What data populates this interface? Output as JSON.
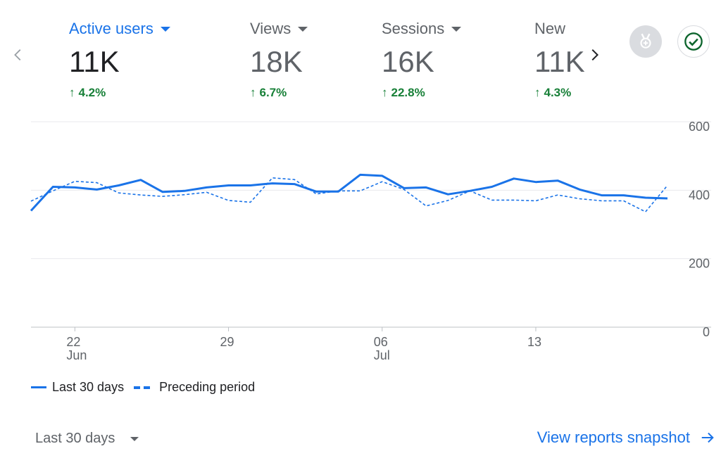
{
  "metrics": [
    {
      "label": "Active users",
      "value": "11K",
      "change": "4.2%",
      "active": true
    },
    {
      "label": "Views",
      "value": "18K",
      "change": "6.7%",
      "active": false
    },
    {
      "label": "Sessions",
      "value": "16K",
      "change": "22.8%",
      "active": false
    },
    {
      "label": "New",
      "value": "11K",
      "change": "4.3%",
      "active": false
    }
  ],
  "icons": {
    "prev": "chevron-left-icon",
    "next": "chevron-right-icon",
    "award": "award-icon",
    "check": "check-circle-icon",
    "arrow": "arrow-right-icon",
    "trend": "arrow-up-icon"
  },
  "colors": {
    "accent": "#1a73e8",
    "positive": "#188038",
    "muted": "#5f6368",
    "badge_bg": "#dadce0"
  },
  "chart_data": {
    "type": "line",
    "y_ticks": [
      "600",
      "400",
      "200",
      "0"
    ],
    "ylim": [
      0,
      600
    ],
    "x_ticks": [
      {
        "day": "22",
        "month": "Jun",
        "index": 2
      },
      {
        "day": "29",
        "month": "",
        "index": 9
      },
      {
        "day": "06",
        "month": "Jul",
        "index": 16
      },
      {
        "day": "13",
        "month": "",
        "index": 23
      }
    ],
    "series": [
      {
        "name": "Last 30 days",
        "style": "solid",
        "values": [
          340,
          410,
          408,
          402,
          414,
          430,
          395,
          398,
          408,
          414,
          414,
          420,
          418,
          396,
          396,
          445,
          442,
          406,
          408,
          388,
          398,
          410,
          434,
          424,
          428,
          402,
          385,
          385,
          378,
          376
        ]
      },
      {
        "name": "Preceding period",
        "style": "dashed",
        "values": [
          368,
          398,
          426,
          422,
          392,
          386,
          382,
          387,
          394,
          370,
          365,
          436,
          431,
          389,
          398,
          398,
          425,
          402,
          354,
          370,
          398,
          371,
          371,
          369,
          386,
          375,
          369,
          369,
          337,
          414
        ]
      }
    ]
  },
  "legend": {
    "current": "Last 30 days",
    "previous": "Preceding period"
  },
  "footer": {
    "range": "Last 30 days",
    "link": "View reports snapshot"
  }
}
